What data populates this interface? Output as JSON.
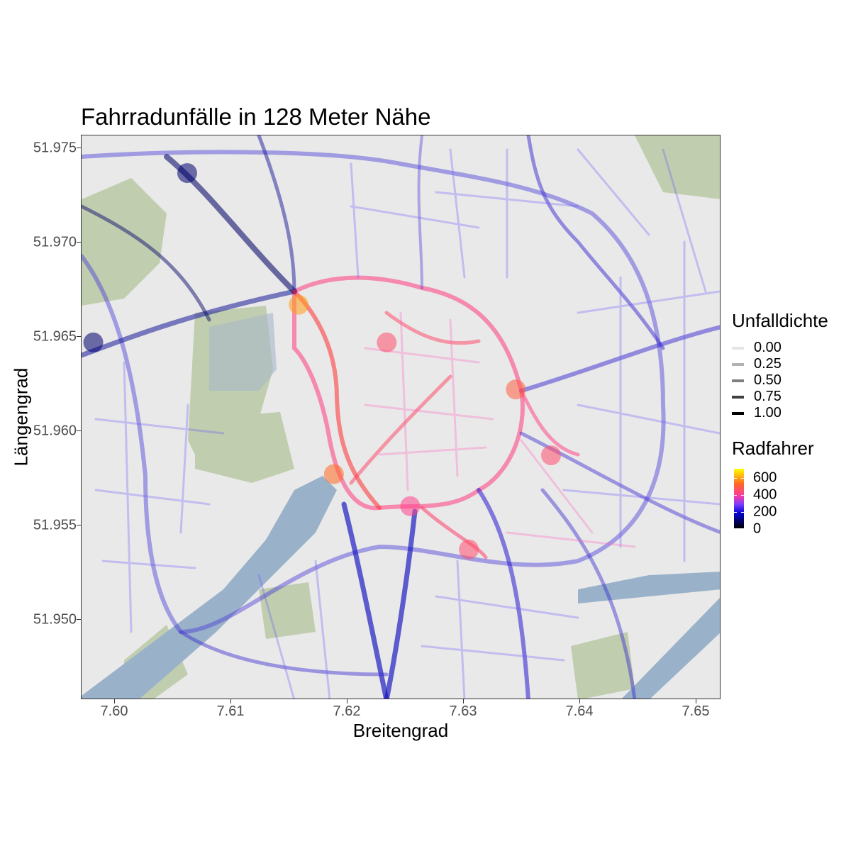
{
  "chart": {
    "title": "Fahrradunfälle in 128 Meter Nähe",
    "xlabel": "Breitengrad",
    "ylabel": "Längengrad",
    "x_ticks": [
      "7.60",
      "7.61",
      "7.62",
      "7.63",
      "7.64",
      "7.65"
    ],
    "y_ticks": [
      "51.975",
      "51.970",
      "51.965",
      "51.960",
      "51.955",
      "51.950"
    ]
  },
  "legend": {
    "alpha_title": "Unfalldichte",
    "alpha_items": [
      "0.00",
      "0.25",
      "0.50",
      "0.75",
      "1.00"
    ],
    "color_title": "Radfahrer",
    "color_items": [
      "600",
      "400",
      "200",
      "0"
    ]
  },
  "chart_data": {
    "type": "scatter",
    "title": "Fahrradunfälle in 128 Meter Nähe",
    "xlabel": "Breitengrad",
    "ylabel": "Längengrad",
    "xlim": [
      7.598,
      7.6525
    ],
    "ylim": [
      51.9455,
      51.9755
    ],
    "x_ticks": [
      7.6,
      7.61,
      7.62,
      7.63,
      7.64,
      7.65
    ],
    "y_ticks": [
      51.975,
      51.97,
      51.965,
      51.96,
      51.955,
      51.95
    ],
    "legend": {
      "alpha": {
        "title": "Unfalldichte",
        "values": [
          0.0,
          0.25,
          0.5,
          0.75,
          1.0
        ]
      },
      "color": {
        "title": "Radfahrer",
        "range": [
          0,
          600
        ],
        "ticks": [
          0,
          200,
          400,
          600
        ],
        "colors": [
          "#000000",
          "#0000d0",
          "#7a3cff",
          "#ff3aa0",
          "#ff6a20",
          "#ffff00"
        ]
      }
    },
    "legend_position": "right",
    "grid": false,
    "basemap": true,
    "hotspots": [
      {
        "x": 7.6165,
        "y": 51.9665,
        "radfahrer": 500
      },
      {
        "x": 7.6195,
        "y": 51.9575,
        "radfahrer": 450
      },
      {
        "x": 7.626,
        "y": 51.9558,
        "radfahrer": 350
      },
      {
        "x": 7.635,
        "y": 51.962,
        "radfahrer": 420
      },
      {
        "x": 7.624,
        "y": 51.9645,
        "radfahrer": 380
      },
      {
        "x": 7.631,
        "y": 51.9535,
        "radfahrer": 380
      },
      {
        "x": 7.638,
        "y": 51.9585,
        "radfahrer": 380
      },
      {
        "x": 7.607,
        "y": 51.9735,
        "radfahrer": 80
      },
      {
        "x": 7.599,
        "y": 51.9645,
        "radfahrer": 80
      }
    ]
  }
}
